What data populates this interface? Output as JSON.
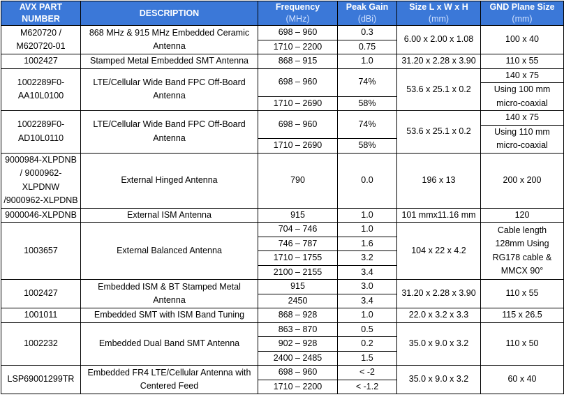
{
  "header": [
    {
      "title": "AVX PART NUMBER"
    },
    {
      "title": "DESCRIPTION"
    },
    {
      "title": "Frequency",
      "unit": "(MHz)"
    },
    {
      "title": "Peak Gain",
      "unit": "(dBi)"
    },
    {
      "title": "Size L x W x H",
      "unit": "(mm)"
    },
    {
      "title": "GND Plane Size",
      "unit": "(mm)"
    }
  ],
  "rows": [
    {
      "part": "M620720 / M620720-01",
      "description": "868 MHz & 915 MHz Embedded Ceramic Antenna",
      "bands": [
        {
          "frequency": "698 – 960",
          "gain": "0.3"
        },
        {
          "frequency": "1710 – 2200",
          "gain": "0.75"
        }
      ],
      "size": "6.00 x 2.00 x 1.08",
      "gnd": [
        "100 x 40"
      ]
    },
    {
      "part": "1002427",
      "description": "Stamped Metal Embedded SMT Antenna",
      "bands": [
        {
          "frequency": "868 – 915",
          "gain": "1.0"
        }
      ],
      "size": "31.20 x 2.28 x 3.90",
      "gnd": [
        "110 x 55"
      ]
    },
    {
      "part": "1002289F0-AA10L0100",
      "description": "LTE/Cellular Wide Band FPC Off-Board Antenna",
      "bands": [
        {
          "frequency": "698 – 960",
          "gain": "74%"
        },
        {
          "frequency": "1710 – 2690",
          "gain": "58%"
        }
      ],
      "size": "53.6 x 25.1 x 0.2",
      "gnd": [
        "140 x 75",
        "Using 100 mm micro-coaxial"
      ]
    },
    {
      "part": "1002289F0-AD10L0110",
      "description": "LTE/Cellular Wide Band FPC Off-Board Antenna",
      "bands": [
        {
          "frequency": "698 – 960",
          "gain": "74%"
        },
        {
          "frequency": "1710 – 2690",
          "gain": "58%"
        }
      ],
      "size": "53.6 x 25.1 x 0.2",
      "gnd": [
        "140 x 75",
        "Using 110 mm micro-coaxial"
      ]
    },
    {
      "part": "9000984-XLPDNB / 9000962-XLPDNW /9000962-XLPDNB",
      "description": "External Hinged Antenna",
      "bands": [
        {
          "frequency": "790",
          "gain": "0.0"
        }
      ],
      "size": "196 x 13",
      "gnd": [
        "200 x 200"
      ]
    },
    {
      "part": "9000046-XLPDNB",
      "description": "External ISM Antenna",
      "bands": [
        {
          "frequency": "915",
          "gain": "1.0"
        }
      ],
      "size": "101 mmx11.16 mm",
      "gnd": [
        "120"
      ]
    },
    {
      "part": "1003657",
      "description": "External Balanced Antenna",
      "bands": [
        {
          "frequency": "704 – 746",
          "gain": "1.0"
        },
        {
          "frequency": "746 – 787",
          "gain": "1.6"
        },
        {
          "frequency": "1710 – 1755",
          "gain": "3.2"
        },
        {
          "frequency": "2100 – 2155",
          "gain": "3.4"
        }
      ],
      "size": "104 x 22 x 4.2",
      "gnd": [
        "Cable length 128mm Using RG178 cable & MMCX 90°"
      ]
    },
    {
      "part": "1002427",
      "description": "Embedded ISM & BT Stamped Metal Antenna",
      "bands": [
        {
          "frequency": "915",
          "gain": "3.0"
        },
        {
          "frequency": "2450",
          "gain": "3.4"
        }
      ],
      "size": "31.20 x 2.28 x 3.90",
      "gnd": [
        "110 x 55"
      ]
    },
    {
      "part": "1001011",
      "description": "Embedded SMT with ISM Band Tuning",
      "bands": [
        {
          "frequency": "868 – 928",
          "gain": "1.0"
        }
      ],
      "size": "22.0 x 3.2 x 3.3",
      "gnd": [
        "115 x 26.5"
      ]
    },
    {
      "part": "1002232",
      "description": "Embedded Dual Band SMT Antenna",
      "bands": [
        {
          "frequency": "863 – 870",
          "gain": "0.5"
        },
        {
          "frequency": "902 – 928",
          "gain": "0.2"
        },
        {
          "frequency": "2400 – 2485",
          "gain": "1.5"
        }
      ],
      "size": "35.0 x 9.0 x 3.2",
      "gnd": [
        "110 x 50"
      ]
    },
    {
      "part": "LSP69001299TR",
      "description": "Embedded FR4 LTE/Cellular Antenna with Centered Feed",
      "bands": [
        {
          "frequency": "698 – 960",
          "gain": "< -2"
        },
        {
          "frequency": "1710 – 2200",
          "gain": "< -1.2"
        }
      ],
      "size": "35.0 x 9.0 x 3.2",
      "gnd": [
        "60 x 40"
      ]
    }
  ]
}
